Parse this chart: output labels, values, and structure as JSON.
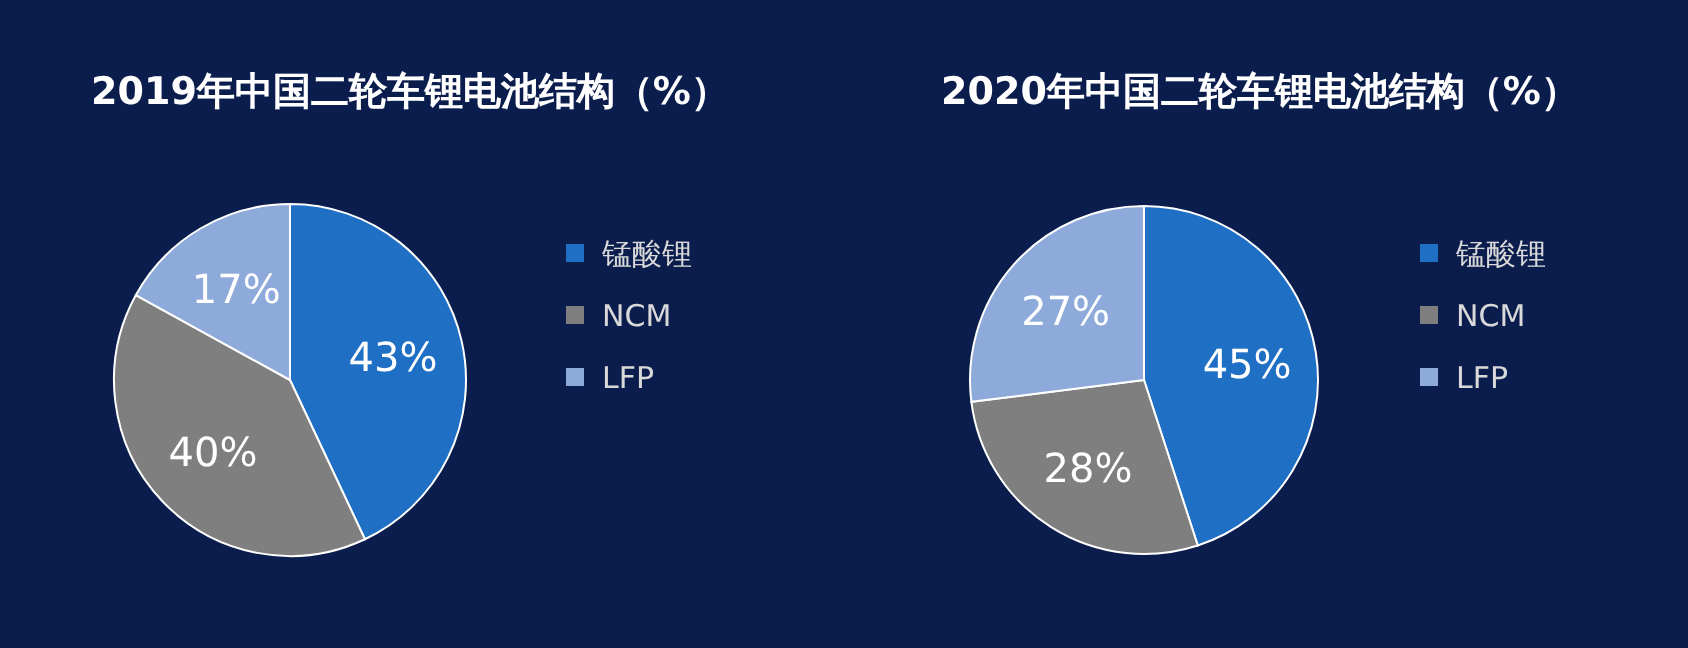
{
  "chart_data": [
    {
      "type": "pie",
      "title": "2019年中国二轮车锂电池结构（%）",
      "categories": [
        "锰酸锂",
        "NCM",
        "LFP"
      ],
      "values": [
        43,
        40,
        17
      ],
      "value_labels": [
        "43%",
        "40%",
        "17%"
      ],
      "colors": [
        "#1f6fc5",
        "#7f7f7f",
        "#8eaadb"
      ],
      "legend": "right"
    },
    {
      "type": "pie",
      "title": "2020年中国二轮车锂电池结构（%）",
      "categories": [
        "锰酸锂",
        "NCM",
        "LFP"
      ],
      "values": [
        45,
        28,
        27
      ],
      "value_labels": [
        "45%",
        "28%",
        "27%"
      ],
      "colors": [
        "#1f6fc5",
        "#7f7f7f",
        "#8eaadb"
      ],
      "legend": "right"
    }
  ]
}
